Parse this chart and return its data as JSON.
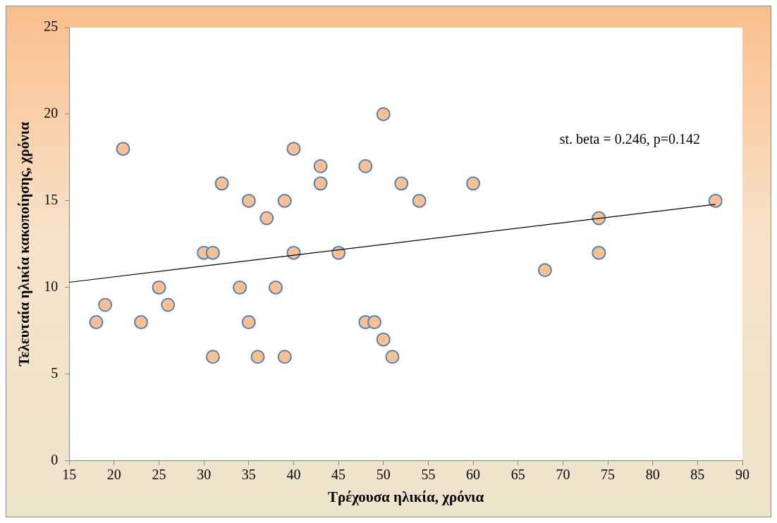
{
  "chart_data": {
    "type": "scatter",
    "xlabel": "Τρέχουσα ηλικία, χρόνια",
    "ylabel": "Τελευταία ηλικία κακοποίησης, χρόνια",
    "xlim": [
      15,
      90
    ],
    "xticks": [
      15,
      20,
      25,
      30,
      35,
      40,
      45,
      50,
      55,
      60,
      65,
      70,
      75,
      80,
      85,
      90
    ],
    "ylim": [
      0,
      25
    ],
    "yticks": [
      0,
      5,
      10,
      15,
      20,
      25
    ],
    "grid": false,
    "legend": false,
    "marker": "circle",
    "annotations": [
      "st. beta = 0.246, p=0.142"
    ],
    "series": [
      {
        "type": "scatter",
        "color": "#fac090",
        "x": [
          18,
          19,
          21,
          23,
          25,
          26,
          30,
          31,
          31,
          32,
          34,
          35,
          35,
          36,
          37,
          38,
          39,
          39,
          40,
          40,
          43,
          43,
          45,
          48,
          48,
          49,
          50,
          50,
          51,
          52,
          54,
          60,
          68,
          74,
          74,
          87
        ],
        "values": [
          8,
          9,
          18,
          8,
          10,
          9,
          12,
          12,
          6,
          16,
          10,
          15,
          8,
          6,
          14,
          10,
          15,
          6,
          18,
          12,
          17,
          16,
          12,
          17,
          8,
          8,
          20,
          7,
          6,
          16,
          15,
          16,
          11,
          14,
          12,
          15
        ]
      },
      {
        "type": "line",
        "color": "#000000",
        "marker": "none",
        "line_style": "solid",
        "x": [
          15,
          87
        ],
        "values": [
          10.3,
          14.8
        ]
      }
    ]
  }
}
